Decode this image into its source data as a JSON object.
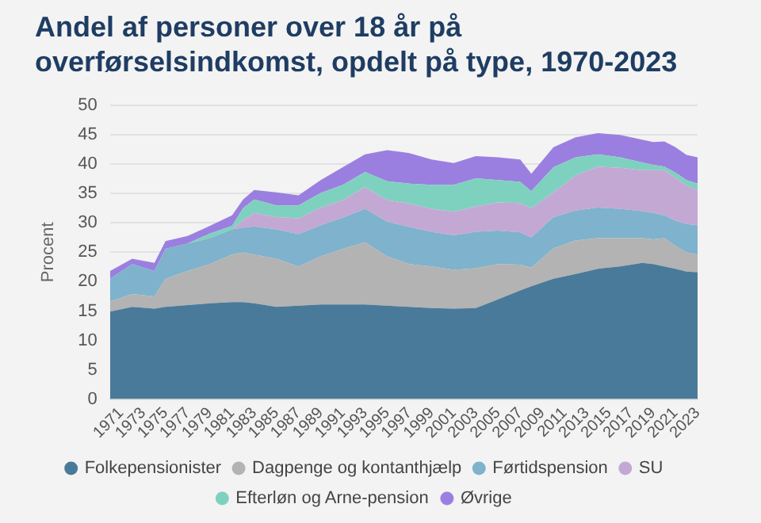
{
  "chart_data": {
    "type": "area",
    "title": "Andel af personer over 18 år på overførselsindkomst, opdelt på type, 1970-2023",
    "ylabel": "Procent",
    "stacked": true,
    "x": [
      1970,
      1972,
      1974,
      1975,
      1977,
      1979,
      1981,
      1982,
      1983,
      1985,
      1987,
      1989,
      1991,
      1993,
      1995,
      1997,
      1999,
      2001,
      2003,
      2005,
      2007,
      2008,
      2010,
      2012,
      2014,
      2016,
      2018,
      2019,
      2020,
      2021,
      2022,
      2023
    ],
    "series": [
      {
        "name": "Folkepensionister",
        "color": "#4a7a9a",
        "values": [
          14.9,
          15.7,
          15.4,
          15.7,
          16.0,
          16.3,
          16.5,
          16.5,
          16.3,
          15.7,
          15.9,
          16.1,
          16.1,
          16.1,
          15.9,
          15.7,
          15.5,
          15.4,
          15.5,
          17.0,
          18.5,
          19.2,
          20.5,
          21.3,
          22.2,
          22.6,
          23.2,
          23.0,
          22.6,
          22.2,
          21.7,
          21.6
        ]
      },
      {
        "name": "Dagpenge og kontanthjælp",
        "color": "#b3b3b3",
        "values": [
          1.7,
          2.2,
          2.1,
          4.8,
          5.8,
          6.7,
          8.1,
          8.5,
          8.3,
          8.2,
          6.7,
          8.2,
          9.5,
          10.6,
          8.4,
          7.3,
          7.1,
          6.6,
          6.8,
          6.0,
          4.4,
          3.2,
          5.2,
          5.7,
          5.2,
          4.8,
          4.2,
          4.2,
          4.8,
          3.9,
          3.3,
          3.0
        ]
      },
      {
        "name": "Førtidspension",
        "color": "#7fb2cc",
        "values": [
          3.9,
          5.1,
          4.3,
          5.1,
          4.7,
          4.4,
          4.3,
          4.2,
          4.8,
          5.0,
          5.5,
          5.3,
          5.3,
          5.7,
          5.9,
          6.3,
          5.9,
          5.9,
          6.2,
          5.7,
          5.5,
          5.1,
          5.3,
          5.1,
          5.2,
          5.0,
          4.6,
          4.5,
          3.9,
          4.3,
          4.8,
          5.0
        ]
      },
      {
        "name": "SU",
        "color": "#c4a8d4",
        "values": [
          0,
          0,
          0,
          0,
          0,
          0,
          0,
          1.3,
          2.3,
          2.1,
          2.7,
          3.0,
          3.0,
          3.7,
          3.7,
          4.0,
          3.9,
          4.0,
          4.3,
          4.8,
          5.0,
          5.0,
          4.2,
          6.0,
          7.0,
          7.0,
          7.0,
          7.3,
          7.7,
          7.3,
          6.6,
          6.0
        ]
      },
      {
        "name": "Efterløn og Arne-pension",
        "color": "#7fd1bf",
        "values": [
          0,
          0,
          0,
          0,
          0,
          0.8,
          0.6,
          2.0,
          2.3,
          2.0,
          2.2,
          2.5,
          2.6,
          2.6,
          3.2,
          3.4,
          4.1,
          4.6,
          4.8,
          3.8,
          3.6,
          2.9,
          4.3,
          3.1,
          2.1,
          1.8,
          1.3,
          0.9,
          0.6,
          0.9,
          0.9,
          1.1
        ]
      },
      {
        "name": "Øvrige",
        "color": "#9b7fe0",
        "values": [
          1.3,
          0.9,
          1.4,
          1.3,
          1.3,
          1.3,
          1.8,
          1.5,
          1.6,
          2.2,
          1.7,
          2.2,
          3.0,
          3.0,
          5.3,
          5.2,
          4.3,
          3.7,
          3.8,
          3.9,
          3.8,
          3.0,
          3.4,
          3.4,
          3.6,
          3.8,
          3.9,
          3.9,
          4.3,
          4.3,
          4.3,
          4.5
        ]
      }
    ],
    "xlim": [
      1970,
      2023
    ],
    "xticks": [
      1971,
      1973,
      1975,
      1977,
      1979,
      1981,
      1983,
      1985,
      1987,
      1989,
      1991,
      1993,
      1995,
      1997,
      1999,
      2001,
      2003,
      2005,
      2007,
      2009,
      2011,
      2013,
      2015,
      2017,
      2019,
      2021,
      2023
    ],
    "ylim": [
      0,
      50
    ],
    "yticks": [
      0,
      5,
      10,
      15,
      20,
      25,
      30,
      35,
      40,
      45,
      50
    ],
    "grid": "y",
    "legend": "bottom"
  }
}
